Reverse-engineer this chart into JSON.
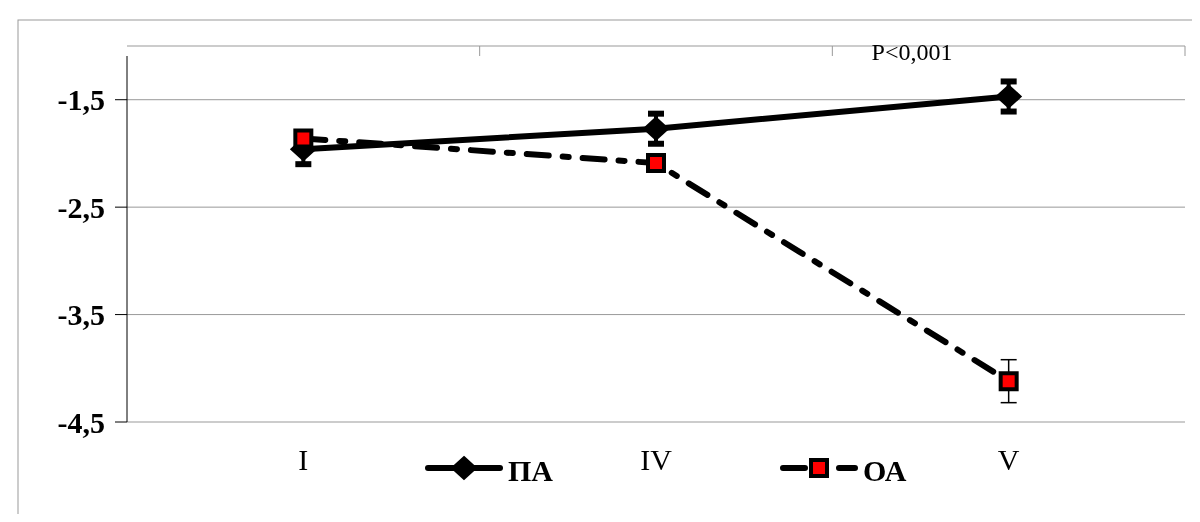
{
  "chart_data": {
    "type": "line",
    "categories": [
      "I",
      "IV",
      "V"
    ],
    "series": [
      {
        "name": "ПА",
        "color": "#000000",
        "marker": "diamond",
        "line_style": "solid",
        "values": [
          -1.96,
          -1.77,
          -1.47
        ],
        "errors": [
          0.14,
          0.14,
          0.14
        ]
      },
      {
        "name": "ОА",
        "color": "#ff0000",
        "marker": "square",
        "line_style": "dashed",
        "values": [
          -1.86,
          -2.09,
          -4.12
        ],
        "errors": [
          null,
          0.05,
          0.2
        ]
      }
    ],
    "ylim": [
      -4.5,
      -1.0
    ],
    "yticks": [
      {
        "value": -1.5,
        "label": "-1,5"
      },
      {
        "value": -2.5,
        "label": "-2,5"
      },
      {
        "value": -3.5,
        "label": "-3,5"
      },
      {
        "value": -4.5,
        "label": "-4,5"
      }
    ],
    "grid": "y",
    "legend": "bottom",
    "annotations": [
      "P<0,001"
    ]
  }
}
